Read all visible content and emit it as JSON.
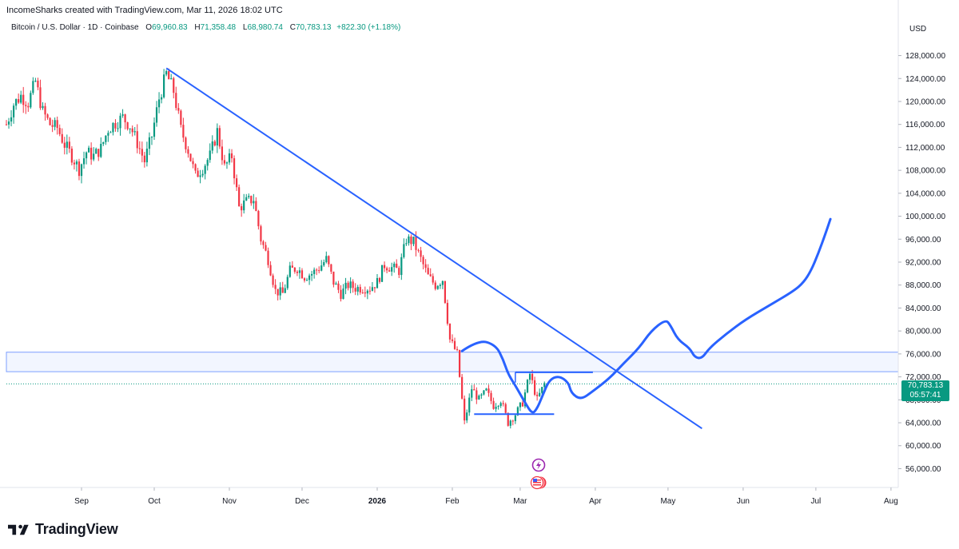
{
  "header": {
    "attribution": "IncomeSharks created with TradingView.com, Mar 11, 2026 18:02 UTC"
  },
  "legend": {
    "symbol": "Bitcoin / U.S. Dollar · 1D · Coinbase",
    "open_label": "O",
    "open": "69,960.83",
    "high_label": "H",
    "high": "71,358.48",
    "low_label": "L",
    "low": "68,980.74",
    "close_label": "C",
    "close": "70,783.13",
    "change": "+822.30 (+1.18%)"
  },
  "currency": "USD",
  "price_tag": {
    "price": "70,783.13",
    "countdown": "05:57:41"
  },
  "brand": {
    "name": "TradingView"
  },
  "colors": {
    "up": "#089981",
    "down": "#f23645",
    "drawing": "#2962ff",
    "zone": "#2962ff"
  },
  "chart_data": {
    "type": "candlestick",
    "title": "",
    "y_unit": "USD",
    "ylim": [
      53000,
      131000
    ],
    "y_ticks": [
      "128,000.00",
      "124,000.00",
      "120,000.00",
      "116,000.00",
      "112,000.00",
      "108,000.00",
      "104,000.00",
      "100,000.00",
      "96,000.00",
      "92,000.00",
      "88,000.00",
      "84,000.00",
      "80,000.00",
      "76,000.00",
      "72,000.00",
      "68,000.00",
      "64,000.00",
      "60,000.00",
      "56,000.00"
    ],
    "x_ticks": [
      "Sep",
      "Oct",
      "Nov",
      "Dec",
      "2026",
      "Feb",
      "Mar",
      "Apr",
      "May",
      "Jun",
      "Jul",
      "Aug"
    ],
    "x_range": [
      "2025-08-01",
      "2026-08-04"
    ],
    "close_path": [
      [
        "2025-08-01",
        116000
      ],
      [
        "2025-08-04",
        119500
      ],
      [
        "2025-08-07",
        121000
      ],
      [
        "2025-08-10",
        119800
      ],
      [
        "2025-08-13",
        123500
      ],
      [
        "2025-08-16",
        118200
      ],
      [
        "2025-08-19",
        116000
      ],
      [
        "2025-08-22",
        115400
      ],
      [
        "2025-08-25",
        112500
      ],
      [
        "2025-08-28",
        110500
      ],
      [
        "2025-08-31",
        108200
      ],
      [
        "2025-09-03",
        111200
      ],
      [
        "2025-09-06",
        110500
      ],
      [
        "2025-09-09",
        111800
      ],
      [
        "2025-09-12",
        115200
      ],
      [
        "2025-09-15",
        116300
      ],
      [
        "2025-09-18",
        117200
      ],
      [
        "2025-09-21",
        115800
      ],
      [
        "2025-09-24",
        112800
      ],
      [
        "2025-09-27",
        109600
      ],
      [
        "2025-09-30",
        114000
      ],
      [
        "2025-10-03",
        120500
      ],
      [
        "2025-10-06",
        124800
      ],
      [
        "2025-10-09",
        121800
      ],
      [
        "2025-10-12",
        115100
      ],
      [
        "2025-10-15",
        111500
      ],
      [
        "2025-10-18",
        107000
      ],
      [
        "2025-10-21",
        108500
      ],
      [
        "2025-10-24",
        110500
      ],
      [
        "2025-10-27",
        114800
      ],
      [
        "2025-10-30",
        108500
      ],
      [
        "2025-11-02",
        110500
      ],
      [
        "2025-11-05",
        101500
      ],
      [
        "2025-11-08",
        102500
      ],
      [
        "2025-11-11",
        103000
      ],
      [
        "2025-11-14",
        96000
      ],
      [
        "2025-11-17",
        92500
      ],
      [
        "2025-11-20",
        87000
      ],
      [
        "2025-11-23",
        86500
      ],
      [
        "2025-11-26",
        90500
      ],
      [
        "2025-11-29",
        91000
      ],
      [
        "2025-12-02",
        89500
      ],
      [
        "2025-12-05",
        90000
      ],
      [
        "2025-12-08",
        91000
      ],
      [
        "2025-12-11",
        92500
      ],
      [
        "2025-12-14",
        88500
      ],
      [
        "2025-12-17",
        86500
      ],
      [
        "2025-12-20",
        88000
      ],
      [
        "2025-12-23",
        87500
      ],
      [
        "2025-12-26",
        87500
      ],
      [
        "2025-12-29",
        87500
      ],
      [
        "2026-01-01",
        88500
      ],
      [
        "2026-01-04",
        91500
      ],
      [
        "2026-01-07",
        91000
      ],
      [
        "2026-01-10",
        90500
      ],
      [
        "2026-01-13",
        96000
      ],
      [
        "2026-01-16",
        95500
      ],
      [
        "2026-01-19",
        92500
      ],
      [
        "2026-01-22",
        89500
      ],
      [
        "2026-01-25",
        88000
      ],
      [
        "2026-01-28",
        89000
      ],
      [
        "2026-01-31",
        78500
      ],
      [
        "2026-02-03",
        76000
      ],
      [
        "2026-02-06",
        64000
      ],
      [
        "2026-02-09",
        70000
      ],
      [
        "2026-02-12",
        68000
      ],
      [
        "2026-02-15",
        69500
      ],
      [
        "2026-02-18",
        67000
      ],
      [
        "2026-02-21",
        68000
      ],
      [
        "2026-02-24",
        64000
      ],
      [
        "2026-02-27",
        65500
      ],
      [
        "2026-03-02",
        67500
      ],
      [
        "2026-03-05",
        72500
      ],
      [
        "2026-03-08",
        68000
      ],
      [
        "2026-03-11",
        70783
      ]
    ],
    "drawings": {
      "resistance_zone": [
        72900,
        76300
      ],
      "current_price_line": 70783,
      "trendline": [
        [
          "2025-10-06",
          125800
        ],
        [
          "2026-05-15",
          63000
        ]
      ],
      "breakout_box_top": 72800,
      "range_support": 65500,
      "projection_path": [
        [
          "2026-02-05",
          76500
        ],
        [
          "2026-02-12",
          78500
        ],
        [
          "2026-02-19",
          77500
        ],
        [
          "2026-02-22",
          75000
        ],
        [
          "2026-02-24",
          72500
        ],
        [
          "2026-02-27",
          70500
        ],
        [
          "2026-03-03",
          67500
        ],
        [
          "2026-03-06",
          65500
        ],
        [
          "2026-03-08",
          66500
        ],
        [
          "2026-03-10",
          68500
        ],
        [
          "2026-03-13",
          71500
        ],
        [
          "2026-03-17",
          72200
        ],
        [
          "2026-03-21",
          71000
        ],
        [
          "2026-03-22",
          69200
        ],
        [
          "2026-03-26",
          68000
        ],
        [
          "2026-03-31",
          69500
        ],
        [
          "2026-04-07",
          71800
        ],
        [
          "2026-04-13",
          74500
        ],
        [
          "2026-04-19",
          77000
        ],
        [
          "2026-04-24",
          80000
        ],
        [
          "2026-04-30",
          82000
        ],
        [
          "2026-05-02",
          81000
        ],
        [
          "2026-05-05",
          78500
        ],
        [
          "2026-05-10",
          77000
        ],
        [
          "2026-05-12",
          75400
        ],
        [
          "2026-05-15",
          75200
        ],
        [
          "2026-05-18",
          77000
        ],
        [
          "2026-05-25",
          79500
        ],
        [
          "2026-06-02",
          82000
        ],
        [
          "2026-06-12",
          84500
        ],
        [
          "2026-06-22",
          87000
        ],
        [
          "2026-06-26",
          88500
        ],
        [
          "2026-06-29",
          90500
        ],
        [
          "2026-07-02",
          93500
        ],
        [
          "2026-07-05",
          97000
        ],
        [
          "2026-07-07",
          99500
        ]
      ]
    },
    "grid": false,
    "legend_position": "top-left"
  }
}
